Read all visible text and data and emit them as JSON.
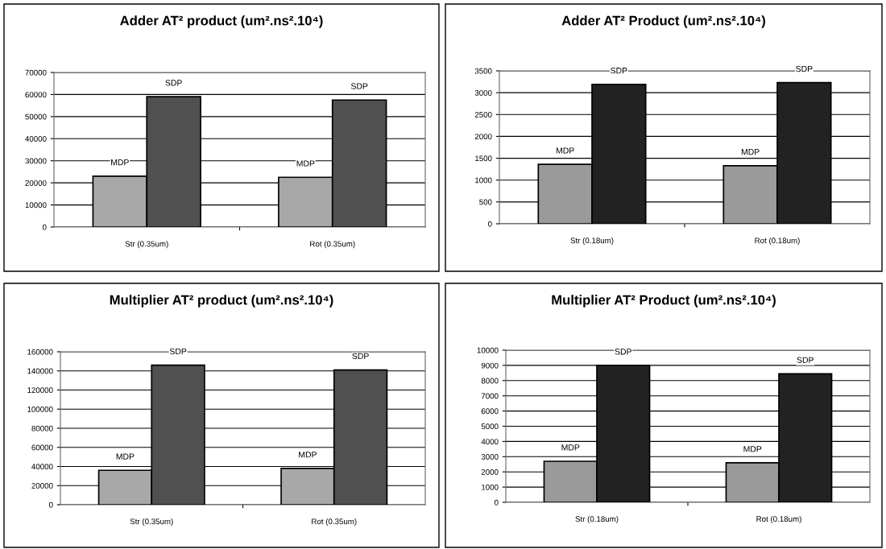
{
  "chart_data": [
    {
      "type": "bar",
      "title": "Adder AT² product (um².ns².10⁴)",
      "categories": [
        "Str (0.35um)",
        "Rot (0.35um)"
      ],
      "series": [
        {
          "name": "MDP",
          "color": "#a8a8a8",
          "values": [
            23000,
            22500
          ]
        },
        {
          "name": "SDP",
          "color": "#505050",
          "values": [
            59000,
            57500
          ]
        }
      ],
      "ylim": [
        0,
        70000
      ],
      "yticks": [
        0,
        10000,
        20000,
        30000,
        40000,
        50000,
        60000,
        70000
      ],
      "grid": "y",
      "legend": false
    },
    {
      "type": "bar",
      "title": "Adder AT² Product (um².ns².10⁴)",
      "categories": [
        "Str (0.18um)",
        "Rot (0.18um)"
      ],
      "series": [
        {
          "name": "MDP",
          "color": "#9a9a9a",
          "values": [
            1360,
            1330
          ]
        },
        {
          "name": "SDP",
          "color": "#222222",
          "values": [
            3190,
            3230
          ]
        }
      ],
      "ylim": [
        0,
        3500
      ],
      "yticks": [
        0,
        500,
        1000,
        1500,
        2000,
        2500,
        3000,
        3500
      ],
      "grid": "y",
      "legend": false
    },
    {
      "type": "bar",
      "title": "Multiplier AT² product (um².ns².10⁴)",
      "categories": [
        "Str (0.35um)",
        "Rot (0.35um)"
      ],
      "series": [
        {
          "name": "MDP",
          "color": "#a8a8a8",
          "values": [
            36000,
            38000
          ]
        },
        {
          "name": "SDP",
          "color": "#505050",
          "values": [
            146000,
            141000
          ]
        }
      ],
      "ylim": [
        0,
        160000
      ],
      "yticks": [
        0,
        20000,
        40000,
        60000,
        80000,
        100000,
        120000,
        140000,
        160000
      ],
      "grid": "y",
      "legend": false
    },
    {
      "type": "bar",
      "title": "Multiplier AT² Product (um².ns².10⁴)",
      "categories": [
        "Str (0.18um)",
        "Rot (0.18um)"
      ],
      "series": [
        {
          "name": "MDP",
          "color": "#9a9a9a",
          "values": [
            2700,
            2600
          ]
        },
        {
          "name": "SDP",
          "color": "#222222",
          "values": [
            9000,
            8450
          ]
        }
      ],
      "ylim": [
        0,
        10000
      ],
      "yticks": [
        0,
        1000,
        2000,
        3000,
        4000,
        5000,
        6000,
        7000,
        8000,
        9000,
        10000
      ],
      "grid": "y",
      "legend": false
    }
  ]
}
